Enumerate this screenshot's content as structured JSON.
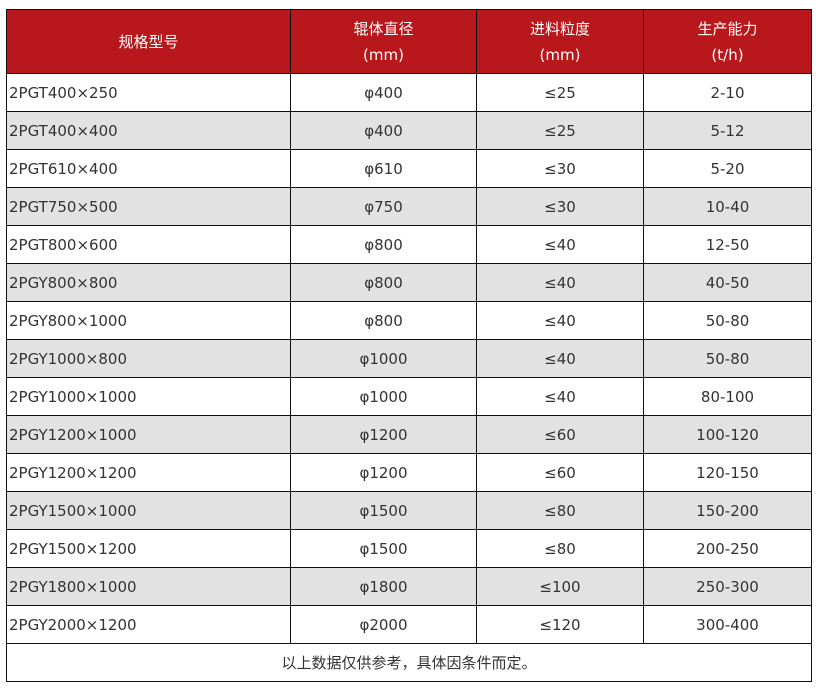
{
  "colors": {
    "header_bg": "#b8181b",
    "alt_row": "#e2e2e2"
  },
  "headers": [
    {
      "line1": "规格型号",
      "line2": ""
    },
    {
      "line1": "辊体直径",
      "line2": "(mm)"
    },
    {
      "line1": "进料粒度",
      "line2": "(mm)"
    },
    {
      "line1": "生产能力",
      "line2": "(t/h)"
    }
  ],
  "rows": [
    [
      "2PGT400×250",
      "φ400",
      "≤25",
      "2-10"
    ],
    [
      "2PGT400×400",
      "φ400",
      "≤25",
      "5-12"
    ],
    [
      "2PGT610×400",
      "φ610",
      "≤30",
      "5-20"
    ],
    [
      "2PGT750×500",
      "φ750",
      "≤30",
      "10-40"
    ],
    [
      "2PGT800×600",
      "φ800",
      "≤40",
      "12-50"
    ],
    [
      "2PGY800×800",
      "φ800",
      "≤40",
      "40-50"
    ],
    [
      "2PGY800×1000",
      "φ800",
      "≤40",
      "50-80"
    ],
    [
      "2PGY1000×800",
      "φ1000",
      "≤40",
      "50-80"
    ],
    [
      "2PGY1000×1000",
      "φ1000",
      "≤40",
      "80-100"
    ],
    [
      "2PGY1200×1000",
      "φ1200",
      "≤60",
      "100-120"
    ],
    [
      "2PGY1200×1200",
      "φ1200",
      "≤60",
      "120-150"
    ],
    [
      "2PGY1500×1000",
      "φ1500",
      "≤80",
      "150-200"
    ],
    [
      "2PGY1500×1200",
      "φ1500",
      "≤80",
      "200-250"
    ],
    [
      "2PGY1800×1000",
      "φ1800",
      "≤100",
      "250-300"
    ],
    [
      "2PGY2000×1200",
      "φ2000",
      "≤120",
      "300-400"
    ]
  ],
  "note": "以上数据仅供参考，具体因条件而定。"
}
